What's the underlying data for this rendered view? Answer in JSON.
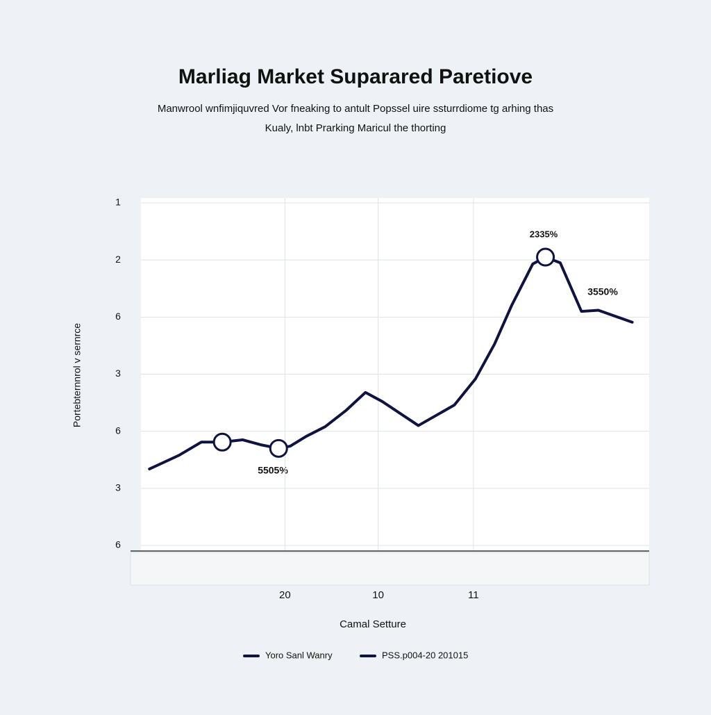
{
  "chart_data": {
    "type": "line",
    "title": "Marliag Market Suparared Paretiove",
    "subtitle": [
      "Manwrool wnfimjiquvred Vor fneaking to antult Popssel uire ssturrdiome tg arhing thas",
      "Kualy, lnbt Prarking Maricul the thorting"
    ],
    "y_label": "Portebternnrol v sernrce",
    "x_label": "Camal Setture",
    "x": [
      0.4,
      1.8,
      2.85,
      3.84,
      4.8,
      5.7,
      6.5,
      7.05,
      7.8,
      8.7,
      9.7,
      10.6,
      11.4,
      13.1,
      14.8,
      15.8,
      16.7,
      17.5,
      18.5,
      19.1,
      19.8,
      20.8,
      21.6,
      23.2
    ],
    "series": [
      {
        "name": "Yoro Sanl Wanry",
        "color": "#0f1340",
        "values": [
          1.34,
          1.58,
          1.81,
          1.81,
          1.85,
          1.76,
          1.7,
          1.74,
          1.91,
          2.08,
          2.37,
          2.68,
          2.52,
          2.1,
          2.46,
          2.92,
          3.53,
          4.2,
          4.93,
          5.05,
          4.95,
          4.1,
          4.12,
          3.91
        ]
      },
      {
        "name": "PSS.p004-20 201015",
        "color": "#0f1340",
        "marker": "circle",
        "values": [
          null,
          null,
          null,
          1.81,
          null,
          null,
          1.7,
          null,
          null,
          null,
          null,
          null,
          null,
          null,
          null,
          null,
          null,
          null,
          null,
          5.05,
          null,
          null,
          null,
          null
        ]
      }
    ],
    "annotations": [
      "2335%",
      "5505%",
      "3550%"
    ],
    "xlim": [
      0,
      24
    ],
    "xticks": [
      {
        "value": 6.8,
        "label": "20"
      },
      {
        "value": 11.2,
        "label": "10"
      },
      {
        "value": 15.7,
        "label": "11"
      }
    ],
    "ylim": [
      0,
      6
    ],
    "yticks": [
      {
        "value": 6,
        "label": "1"
      },
      {
        "value": 5,
        "label": "2"
      },
      {
        "value": 4,
        "label": "6"
      },
      {
        "value": 3,
        "label": "3"
      },
      {
        "value": 2,
        "label": "6"
      },
      {
        "value": 1,
        "label": "3"
      },
      {
        "value": 0,
        "label": "6"
      }
    ],
    "grid": true
  }
}
